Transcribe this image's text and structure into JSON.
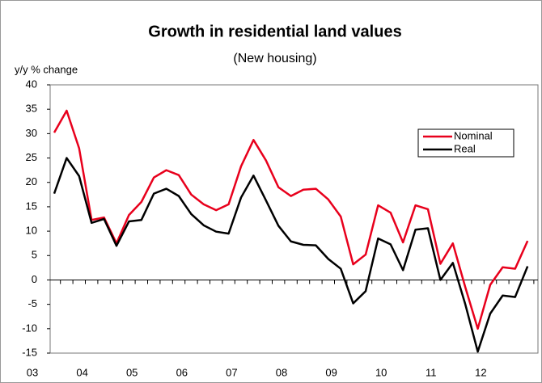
{
  "chart_data": {
    "type": "line",
    "title": "Growth in residential land values",
    "subtitle": "(New housing)",
    "y_label": "y/y % change",
    "categories": [
      "03",
      null,
      null,
      null,
      "04",
      null,
      null,
      null,
      "05",
      null,
      null,
      null,
      "06",
      null,
      null,
      null,
      "07",
      null,
      null,
      null,
      "08",
      null,
      null,
      null,
      "09",
      null,
      null,
      null,
      "10",
      null,
      null,
      null,
      "11",
      null,
      null,
      null,
      "12",
      null,
      null
    ],
    "series": [
      {
        "name": "Nominal",
        "color": "#e8001c",
        "values": [
          30.2,
          34.7,
          27,
          12.3,
          12.8,
          7.5,
          13.3,
          16,
          21,
          22.5,
          21.5,
          17.5,
          15.5,
          14.3,
          15.5,
          23.3,
          28.7,
          24.5,
          19,
          17.2,
          18.5,
          18.7,
          16.5,
          13,
          3.2,
          5.2,
          15.3,
          13.8,
          7.7,
          15.3,
          14.5,
          3.3,
          7.5,
          -1.5,
          -10,
          -1,
          2.6,
          2.3,
          8
        ]
      },
      {
        "name": "Real",
        "color": "#000000",
        "values": [
          17.7,
          25,
          21.3,
          11.7,
          12.5,
          7,
          12,
          12.3,
          17.7,
          18.7,
          17.2,
          13.5,
          11.2,
          9.9,
          9.5,
          16.9,
          21.4,
          16.3,
          11.1,
          7.9,
          7.2,
          7.1,
          4.3,
          2.3,
          -4.8,
          -2.3,
          8.5,
          7.3,
          2,
          10.3,
          10.6,
          0,
          3.5,
          -5,
          -14.7,
          -6.9,
          -3.2,
          -3.5,
          2.8
        ]
      }
    ],
    "ylim": [
      -15,
      40
    ],
    "yticks": [
      -15,
      -10,
      -5,
      0,
      5,
      10,
      15,
      20,
      25,
      30,
      35,
      40
    ],
    "grid": false,
    "legend": "upper right"
  }
}
